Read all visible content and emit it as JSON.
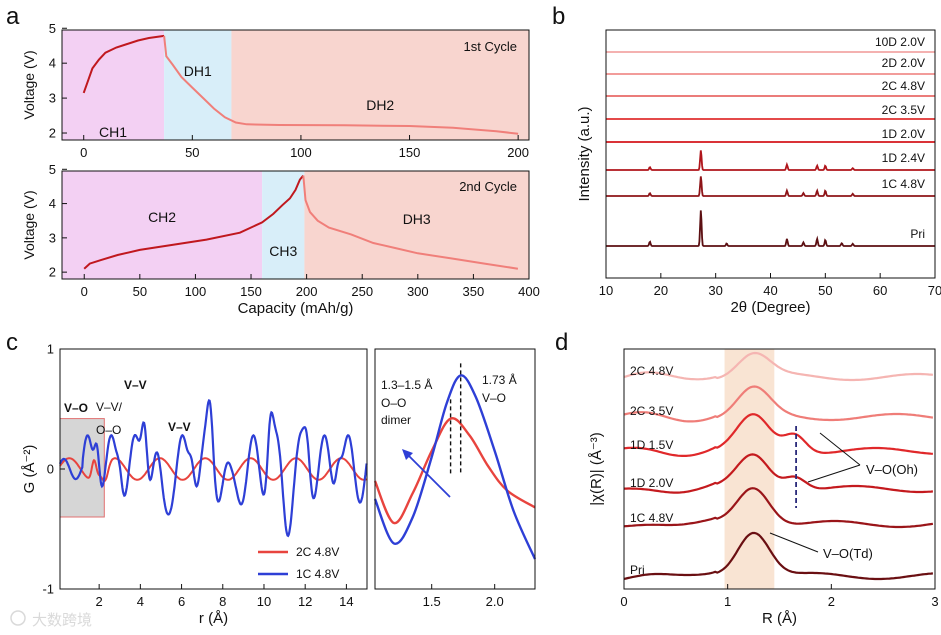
{
  "panel_letters": {
    "a": "a",
    "b": "b",
    "c": "c",
    "d": "d"
  },
  "watermark": "大数跨境",
  "chart_data": [
    {
      "panel": "a-top",
      "type": "line",
      "title": "1st Cycle",
      "ylabel": "Voltage (V)",
      "xlim": [
        -10,
        205
      ],
      "ylim": [
        1.8,
        4.95
      ],
      "xticks": [
        "0",
        "50",
        "100",
        "150",
        "200"
      ],
      "yticks": [
        "2",
        "3",
        "4",
        "5"
      ],
      "regions": [
        {
          "label": "CH1",
          "from": -10,
          "to": 37,
          "color": "#f3d0f3"
        },
        {
          "label": "DH1",
          "from": 37,
          "to": 68,
          "color": "#d8eef9"
        },
        {
          "label": "DH2",
          "from": 68,
          "to": 205,
          "color": "#f8d5cf"
        }
      ],
      "series": [
        {
          "color": "#c0181e",
          "points": [
            [
              0,
              3.15
            ],
            [
              2,
              3.5
            ],
            [
              4,
              3.85
            ],
            [
              7,
              4.1
            ],
            [
              10,
              4.3
            ],
            [
              15,
              4.45
            ],
            [
              20,
              4.55
            ],
            [
              25,
              4.65
            ],
            [
              30,
              4.72
            ],
            [
              37,
              4.78
            ]
          ]
        },
        {
          "color": "#f07f7a",
          "points": [
            [
              37,
              4.78
            ],
            [
              38,
              4.2
            ],
            [
              41,
              3.95
            ],
            [
              45,
              3.6
            ],
            [
              50,
              3.3
            ],
            [
              55,
              3.0
            ],
            [
              60,
              2.7
            ],
            [
              65,
              2.45
            ],
            [
              70,
              2.3
            ],
            [
              75,
              2.25
            ],
            [
              90,
              2.23
            ],
            [
              120,
              2.22
            ],
            [
              150,
              2.2
            ],
            [
              170,
              2.15
            ],
            [
              190,
              2.05
            ],
            [
              200,
              1.98
            ]
          ]
        }
      ]
    },
    {
      "panel": "a-bottom",
      "type": "line",
      "title": "2nd Cycle",
      "xlabel": "Capacity (mAh/g)",
      "ylabel": "Voltage (V)",
      "xlim": [
        -20,
        400
      ],
      "ylim": [
        1.8,
        4.95
      ],
      "xticks": [
        "0",
        "50",
        "100",
        "150",
        "200",
        "250",
        "300",
        "350",
        "400"
      ],
      "yticks": [
        "2",
        "3",
        "4",
        "5"
      ],
      "regions": [
        {
          "label": "CH2",
          "from": -20,
          "to": 160,
          "color": "#f3d0f3"
        },
        {
          "label": "CH3",
          "from": 160,
          "to": 198,
          "color": "#d8eef9"
        },
        {
          "label": "DH3",
          "from": 198,
          "to": 400,
          "color": "#f8d5cf"
        }
      ],
      "series": [
        {
          "color": "#c0181e",
          "points": [
            [
              0,
              2.1
            ],
            [
              5,
              2.25
            ],
            [
              15,
              2.35
            ],
            [
              30,
              2.5
            ],
            [
              50,
              2.65
            ],
            [
              80,
              2.8
            ],
            [
              110,
              2.95
            ],
            [
              140,
              3.15
            ],
            [
              160,
              3.45
            ],
            [
              170,
              3.7
            ],
            [
              178,
              3.95
            ],
            [
              185,
              4.15
            ],
            [
              190,
              4.4
            ],
            [
              194,
              4.7
            ],
            [
              197,
              4.82
            ]
          ]
        },
        {
          "color": "#f07f7a",
          "points": [
            [
              197,
              4.82
            ],
            [
              199,
              4.1
            ],
            [
              203,
              3.75
            ],
            [
              210,
              3.5
            ],
            [
              220,
              3.3
            ],
            [
              240,
              3.1
            ],
            [
              260,
              2.85
            ],
            [
              280,
              2.7
            ],
            [
              300,
              2.55
            ],
            [
              330,
              2.4
            ],
            [
              360,
              2.25
            ],
            [
              390,
              2.1
            ]
          ]
        }
      ]
    },
    {
      "panel": "b",
      "type": "line",
      "xlabel": "2θ (Degree)",
      "ylabel": "Intensity (a.u.)",
      "xlim": [
        10,
        70
      ],
      "xticks": [
        "10",
        "20",
        "30",
        "40",
        "50",
        "60",
        "70"
      ],
      "series": [
        {
          "name": "10D 2.0V",
          "color": "#f2a6a4",
          "peaks": []
        },
        {
          "name": "2D 2.0V",
          "color": "#f08e8b",
          "peaks": []
        },
        {
          "name": "2C 4.8V",
          "color": "#e86a67",
          "peaks": []
        },
        {
          "name": "2C 3.5V",
          "color": "#e03030",
          "peaks": []
        },
        {
          "name": "1D 2.0V",
          "color": "#d4161c",
          "peaks": []
        },
        {
          "name": "1D 2.4V",
          "color": "#b0151b",
          "peaks": [
            [
              18,
              0.08
            ],
            [
              27.3,
              0.55
            ],
            [
              43,
              0.15
            ],
            [
              48.5,
              0.12
            ],
            [
              50,
              0.12
            ],
            [
              55,
              0.05
            ]
          ]
        },
        {
          "name": "1C 4.8V",
          "color": "#8e1418",
          "peaks": [
            [
              18,
              0.08
            ],
            [
              27.3,
              0.55
            ],
            [
              43,
              0.15
            ],
            [
              46,
              0.08
            ],
            [
              48.5,
              0.15
            ],
            [
              50,
              0.15
            ],
            [
              55,
              0.06
            ]
          ]
        },
        {
          "name": "Pri",
          "color": "#5c0f12",
          "peaks": [
            [
              18,
              0.12
            ],
            [
              27.3,
              1.0
            ],
            [
              32,
              0.07
            ],
            [
              43,
              0.2
            ],
            [
              46,
              0.1
            ],
            [
              48.5,
              0.2
            ],
            [
              50,
              0.17
            ],
            [
              53,
              0.08
            ],
            [
              55,
              0.06
            ]
          ]
        }
      ]
    },
    {
      "panel": "c-left",
      "type": "line",
      "xlabel": "r (Å)",
      "ylabel": "G (Å⁻²)",
      "xlim": [
        0.1,
        15
      ],
      "ylim": [
        -1,
        1
      ],
      "xticks": [
        "2",
        "4",
        "6",
        "8",
        "10",
        "12",
        "14"
      ],
      "yticks": [
        "-1",
        "0",
        "1"
      ],
      "annotations": [
        "V–O",
        "V–V/",
        "O–O",
        "V–V",
        "V–V"
      ],
      "series": [
        {
          "name": "2C 4.8V",
          "color": "#e8443e"
        },
        {
          "name": "1C 4.8V",
          "color": "#2e3fd6"
        }
      ]
    },
    {
      "panel": "c-right",
      "type": "line",
      "xlabel": "",
      "xlim": [
        1.05,
        2.32
      ],
      "xticks": [
        "1.5",
        "2.0"
      ],
      "annotations": [
        "1.3–1.5 Å",
        "O–O",
        "dimer",
        "1.73 Å",
        "V–O"
      ],
      "series": [
        {
          "name": "2C 4.8V",
          "color": "#e8443e",
          "points": [
            [
              1.05,
              -0.1
            ],
            [
              1.2,
              -0.45
            ],
            [
              1.35,
              -0.2
            ],
            [
              1.5,
              0.15
            ],
            [
              1.65,
              0.42
            ],
            [
              1.8,
              0.28
            ],
            [
              1.95,
              0.02
            ],
            [
              2.1,
              -0.18
            ],
            [
              2.32,
              -0.32
            ]
          ]
        },
        {
          "name": "1C 4.8V",
          "color": "#2e3fd6",
          "points": [
            [
              1.05,
              -0.25
            ],
            [
              1.2,
              -0.62
            ],
            [
              1.35,
              -0.4
            ],
            [
              1.5,
              0.1
            ],
            [
              1.62,
              0.55
            ],
            [
              1.73,
              0.78
            ],
            [
              1.85,
              0.6
            ],
            [
              2.0,
              0.15
            ],
            [
              2.15,
              -0.35
            ],
            [
              2.32,
              -0.75
            ]
          ]
        }
      ]
    },
    {
      "panel": "d",
      "type": "line",
      "xlabel": "R (Å)",
      "ylabel": "|χ(R)| (Å⁻³)",
      "xlim": [
        0,
        3
      ],
      "xticks": [
        "0",
        "1",
        "2",
        "3"
      ],
      "annotations": [
        "V–O(Oh)",
        "V–O(Td)"
      ],
      "series": [
        {
          "name": "2C 4.8V",
          "color": "#f5b5b2"
        },
        {
          "name": "2C 3.5V",
          "color": "#ef7d78"
        },
        {
          "name": "1D 1.5V",
          "color": "#e0282a"
        },
        {
          "name": "1D 2.0V",
          "color": "#c41a1e"
        },
        {
          "name": "1C 4.8V",
          "color": "#9a1519"
        },
        {
          "name": "Pri",
          "color": "#6a0f12"
        }
      ]
    }
  ]
}
